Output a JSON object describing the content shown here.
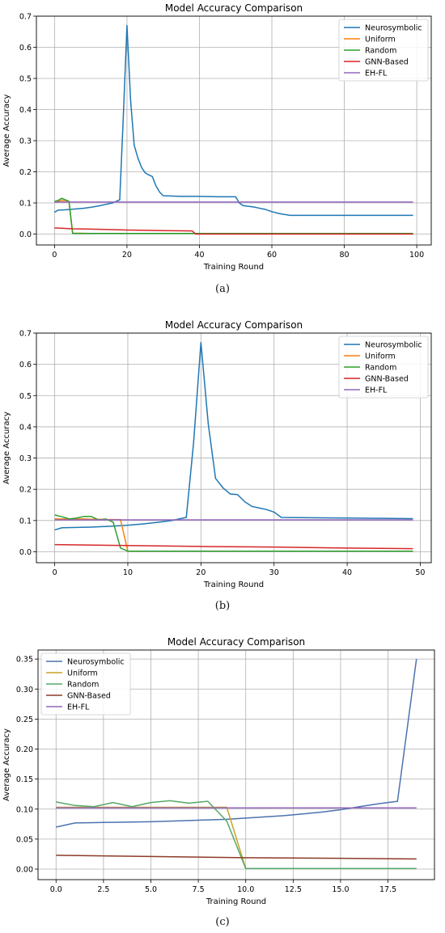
{
  "colors": {
    "a": {
      "Neurosymbolic": "#1f77b4",
      "Uniform": "#ff7f0e",
      "Random": "#2ca02c",
      "GNN-Based": "#d62728",
      "EH-FL": "#9467bd"
    },
    "b": {
      "Neurosymbolic": "#1f77b4",
      "Uniform": "#ff7f0e",
      "Random": "#2ca02c",
      "GNN-Based": "#d62728",
      "EH-FL": "#9467bd"
    },
    "c": {
      "Neurosymbolic": "#4c72b0",
      "Uniform": "#c9a227",
      "Random": "#55a868",
      "GNN-Based": "#8c3b28",
      "EH-FL": "#9467bd"
    }
  },
  "chart_data": [
    {
      "type": "line",
      "caption": "(a)",
      "title": "Model Accuracy Comparison",
      "xlabel": "Training Round",
      "ylabel": "Average Accuracy",
      "xlim": [
        -5,
        104
      ],
      "ylim": [
        -0.035,
        0.7
      ],
      "xticks": [
        0,
        20,
        40,
        60,
        80,
        100
      ],
      "xtick_labels": [
        "0",
        "20",
        "40",
        "60",
        "80",
        "100"
      ],
      "yticks": [
        0.0,
        0.1,
        0.2,
        0.3,
        0.4,
        0.5,
        0.6,
        0.7
      ],
      "ytick_labels": [
        "0.0",
        "0.1",
        "0.2",
        "0.3",
        "0.4",
        "0.5",
        "0.6",
        "0.7"
      ],
      "grid": true,
      "legend_position": "top-right",
      "series": [
        {
          "name": "Neurosymbolic",
          "x": [
            0,
            1,
            3,
            5,
            8,
            10,
            12,
            14,
            16,
            17,
            18,
            19,
            20,
            21,
            22,
            23,
            24,
            25,
            26,
            27,
            28,
            29,
            30,
            35,
            40,
            45,
            50,
            51,
            52,
            53,
            55,
            57,
            58,
            60,
            62,
            65,
            70,
            80,
            90,
            99
          ],
          "y": [
            0.07,
            0.077,
            0.078,
            0.08,
            0.083,
            0.086,
            0.09,
            0.095,
            0.1,
            0.105,
            0.11,
            0.38,
            0.67,
            0.43,
            0.285,
            0.245,
            0.215,
            0.197,
            0.19,
            0.185,
            0.155,
            0.135,
            0.123,
            0.121,
            0.121,
            0.12,
            0.12,
            0.1,
            0.092,
            0.09,
            0.087,
            0.082,
            0.08,
            0.072,
            0.066,
            0.06,
            0.06,
            0.06,
            0.06,
            0.06
          ]
        },
        {
          "name": "Uniform",
          "x": [
            0,
            2,
            3,
            4,
            5,
            10,
            20,
            30,
            38,
            39,
            50,
            60,
            70,
            80,
            90,
            99
          ],
          "y": [
            0.103,
            0.108,
            0.108,
            0.105,
            0.003,
            0.002,
            0.002,
            0.002,
            0.002,
            0.002,
            0.002,
            0.002,
            0.002,
            0.002,
            0.002,
            0.002
          ]
        },
        {
          "name": "Random",
          "x": [
            0,
            1,
            2,
            3,
            4,
            5,
            10,
            20,
            30,
            38,
            39,
            50,
            60,
            70,
            80,
            90,
            99
          ],
          "y": [
            0.105,
            0.108,
            0.115,
            0.11,
            0.105,
            0.002,
            0.002,
            0.002,
            0.002,
            0.002,
            0.002,
            0.002,
            0.002,
            0.002,
            0.002,
            0.002,
            0.002
          ]
        },
        {
          "name": "GNN-Based",
          "x": [
            0,
            5,
            10,
            20,
            30,
            38,
            39,
            50,
            60,
            70,
            80,
            90,
            99
          ],
          "y": [
            0.02,
            0.017,
            0.016,
            0.013,
            0.011,
            0.01,
            0.0,
            0.0,
            0.0,
            0.0,
            0.0,
            0.0,
            0.0
          ]
        },
        {
          "name": "EH-FL",
          "x": [
            0,
            99
          ],
          "y": [
            0.103,
            0.103
          ]
        }
      ]
    },
    {
      "type": "line",
      "caption": "(b)",
      "title": "Model Accuracy Comparison",
      "xlabel": "Training Round",
      "ylabel": "Average Accuracy",
      "xlim": [
        -2.5,
        51.5
      ],
      "ylim": [
        -0.035,
        0.7
      ],
      "xticks": [
        0,
        10,
        20,
        30,
        40,
        50
      ],
      "xtick_labels": [
        "0",
        "10",
        "20",
        "30",
        "40",
        "50"
      ],
      "yticks": [
        0.0,
        0.1,
        0.2,
        0.3,
        0.4,
        0.5,
        0.6,
        0.7
      ],
      "ytick_labels": [
        "0.0",
        "0.1",
        "0.2",
        "0.3",
        "0.4",
        "0.5",
        "0.6",
        "0.7"
      ],
      "grid": true,
      "legend_position": "top-right",
      "series": [
        {
          "name": "Neurosymbolic",
          "x": [
            0,
            1,
            3,
            5,
            8,
            10,
            12,
            14,
            16,
            17,
            18,
            19,
            20,
            21,
            22,
            23,
            24,
            25,
            26,
            27,
            28,
            29,
            30,
            31,
            35,
            40,
            45,
            49
          ],
          "y": [
            0.07,
            0.077,
            0.078,
            0.079,
            0.082,
            0.085,
            0.089,
            0.094,
            0.1,
            0.105,
            0.11,
            0.35,
            0.67,
            0.41,
            0.235,
            0.205,
            0.185,
            0.183,
            0.16,
            0.145,
            0.14,
            0.135,
            0.127,
            0.11,
            0.109,
            0.108,
            0.107,
            0.106
          ]
        },
        {
          "name": "Uniform",
          "x": [
            0,
            2,
            4,
            5,
            6,
            7,
            8,
            9,
            10,
            20,
            30,
            40,
            49
          ],
          "y": [
            0.105,
            0.105,
            0.105,
            0.104,
            0.104,
            0.103,
            0.103,
            0.103,
            0.002,
            0.002,
            0.002,
            0.002,
            0.002
          ]
        },
        {
          "name": "Random",
          "x": [
            0,
            1,
            2,
            3,
            4,
            5,
            6,
            7,
            8,
            9,
            10,
            20,
            30,
            40,
            49
          ],
          "y": [
            0.118,
            0.112,
            0.105,
            0.108,
            0.113,
            0.113,
            0.102,
            0.105,
            0.095,
            0.012,
            0.002,
            0.002,
            0.002,
            0.002,
            0.002
          ]
        },
        {
          "name": "GNN-Based",
          "x": [
            0,
            10,
            20,
            30,
            40,
            49
          ],
          "y": [
            0.023,
            0.02,
            0.017,
            0.015,
            0.012,
            0.01
          ]
        },
        {
          "name": "EH-FL",
          "x": [
            0,
            49
          ],
          "y": [
            0.102,
            0.102
          ]
        }
      ]
    },
    {
      "type": "line",
      "caption": "(c)",
      "title": "Model Accuracy Comparison",
      "xlabel": "Training Round",
      "ylabel": "Average Accuracy",
      "xlim": [
        -0.95,
        19.95
      ],
      "ylim": [
        -0.0175,
        0.365
      ],
      "xticks": [
        0,
        2.5,
        5,
        7.5,
        10,
        12.5,
        15,
        17.5
      ],
      "xtick_labels": [
        "0.0",
        "2.5",
        "5.0",
        "7.5",
        "10.0",
        "12.5",
        "15.0",
        "17.5"
      ],
      "yticks": [
        0.0,
        0.05,
        0.1,
        0.15,
        0.2,
        0.25,
        0.3,
        0.35
      ],
      "ytick_labels": [
        "0.00",
        "0.05",
        "0.10",
        "0.15",
        "0.20",
        "0.25",
        "0.30",
        "0.35"
      ],
      "grid": true,
      "legend_position": "top-left",
      "series": [
        {
          "name": "Neurosymbolic",
          "x": [
            0,
            1,
            2,
            3,
            4,
            5,
            6,
            7,
            8,
            9,
            10,
            11,
            12,
            13,
            14,
            15,
            16,
            17,
            18,
            19
          ],
          "y": [
            0.07,
            0.077,
            0.0775,
            0.078,
            0.0785,
            0.079,
            0.08,
            0.081,
            0.082,
            0.083,
            0.085,
            0.087,
            0.089,
            0.092,
            0.095,
            0.099,
            0.104,
            0.109,
            0.113,
            0.35
          ]
        },
        {
          "name": "Uniform",
          "x": [
            0,
            1,
            2,
            3,
            4,
            5,
            6,
            7,
            8,
            9,
            10,
            11,
            12,
            13,
            14,
            15,
            16,
            17,
            18,
            19
          ],
          "y": [
            0.103,
            0.103,
            0.103,
            0.103,
            0.103,
            0.103,
            0.103,
            0.103,
            0.103,
            0.103,
            0.001,
            0.001,
            0.001,
            0.001,
            0.001,
            0.001,
            0.001,
            0.001,
            0.001,
            0.001
          ]
        },
        {
          "name": "Random",
          "x": [
            0,
            1,
            2,
            3,
            4,
            5,
            6,
            7,
            8,
            9,
            10,
            11,
            12,
            13,
            14,
            15,
            16,
            17,
            18,
            19
          ],
          "y": [
            0.112,
            0.106,
            0.104,
            0.111,
            0.104,
            0.111,
            0.114,
            0.11,
            0.113,
            0.08,
            0.001,
            0.001,
            0.001,
            0.001,
            0.001,
            0.001,
            0.001,
            0.001,
            0.001,
            0.001
          ]
        },
        {
          "name": "GNN-Based",
          "x": [
            0,
            5,
            10,
            15,
            19
          ],
          "y": [
            0.023,
            0.021,
            0.019,
            0.018,
            0.017
          ]
        },
        {
          "name": "EH-FL",
          "x": [
            0,
            19
          ],
          "y": [
            0.102,
            0.102
          ]
        }
      ]
    }
  ]
}
